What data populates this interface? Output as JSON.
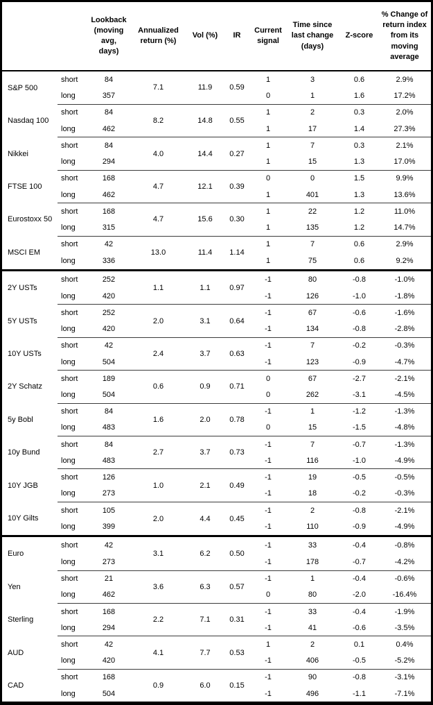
{
  "chart_data": {
    "type": "table",
    "columns": [
      "",
      "",
      "Lookback (moving avg, days)",
      "Annualized return (%)",
      "Vol (%)",
      "IR",
      "Current signal",
      "Time since last change (days)",
      "Z-score",
      "% Change of return index from its moving average"
    ],
    "row_labels": {
      "short": "short",
      "long": "long"
    },
    "sections": [
      [
        {
          "name": "S&P 500",
          "annualized_return": "7.1",
          "vol": "11.9",
          "ir": "0.59",
          "short": {
            "lookback": "84",
            "signal": "1",
            "time_since": "3",
            "z_score": "0.6",
            "pct_change": "2.9%"
          },
          "long": {
            "lookback": "357",
            "signal": "0",
            "time_since": "1",
            "z_score": "1.6",
            "pct_change": "17.2%"
          }
        },
        {
          "name": "Nasdaq 100",
          "annualized_return": "8.2",
          "vol": "14.8",
          "ir": "0.55",
          "short": {
            "lookback": "84",
            "signal": "1",
            "time_since": "2",
            "z_score": "0.3",
            "pct_change": "2.0%"
          },
          "long": {
            "lookback": "462",
            "signal": "1",
            "time_since": "17",
            "z_score": "1.4",
            "pct_change": "27.3%"
          }
        },
        {
          "name": "Nikkei",
          "annualized_return": "4.0",
          "vol": "14.4",
          "ir": "0.27",
          "short": {
            "lookback": "84",
            "signal": "1",
            "time_since": "7",
            "z_score": "0.3",
            "pct_change": "2.1%"
          },
          "long": {
            "lookback": "294",
            "signal": "1",
            "time_since": "15",
            "z_score": "1.3",
            "pct_change": "17.0%"
          }
        },
        {
          "name": "FTSE 100",
          "annualized_return": "4.7",
          "vol": "12.1",
          "ir": "0.39",
          "short": {
            "lookback": "168",
            "signal": "0",
            "time_since": "0",
            "z_score": "1.5",
            "pct_change": "9.9%"
          },
          "long": {
            "lookback": "462",
            "signal": "1",
            "time_since": "401",
            "z_score": "1.3",
            "pct_change": "13.6%"
          }
        },
        {
          "name": "Eurostoxx 50",
          "annualized_return": "4.7",
          "vol": "15.6",
          "ir": "0.30",
          "short": {
            "lookback": "168",
            "signal": "1",
            "time_since": "22",
            "z_score": "1.2",
            "pct_change": "11.0%"
          },
          "long": {
            "lookback": "315",
            "signal": "1",
            "time_since": "135",
            "z_score": "1.2",
            "pct_change": "14.7%"
          }
        },
        {
          "name": "MSCI EM",
          "annualized_return": "13.0",
          "vol": "11.4",
          "ir": "1.14",
          "short": {
            "lookback": "42",
            "signal": "1",
            "time_since": "7",
            "z_score": "0.6",
            "pct_change": "2.9%"
          },
          "long": {
            "lookback": "336",
            "signal": "1",
            "time_since": "75",
            "z_score": "0.6",
            "pct_change": "9.2%"
          }
        }
      ],
      [
        {
          "name": "2Y USTs",
          "annualized_return": "1.1",
          "vol": "1.1",
          "ir": "0.97",
          "short": {
            "lookback": "252",
            "signal": "-1",
            "time_since": "80",
            "z_score": "-0.8",
            "pct_change": "-1.0%"
          },
          "long": {
            "lookback": "420",
            "signal": "-1",
            "time_since": "126",
            "z_score": "-1.0",
            "pct_change": "-1.8%"
          }
        },
        {
          "name": "5Y USTs",
          "annualized_return": "2.0",
          "vol": "3.1",
          "ir": "0.64",
          "short": {
            "lookback": "252",
            "signal": "-1",
            "time_since": "67",
            "z_score": "-0.6",
            "pct_change": "-1.6%"
          },
          "long": {
            "lookback": "420",
            "signal": "-1",
            "time_since": "134",
            "z_score": "-0.8",
            "pct_change": "-2.8%"
          }
        },
        {
          "name": "10Y USTs",
          "annualized_return": "2.4",
          "vol": "3.7",
          "ir": "0.63",
          "short": {
            "lookback": "42",
            "signal": "-1",
            "time_since": "7",
            "z_score": "-0.2",
            "pct_change": "-0.3%"
          },
          "long": {
            "lookback": "504",
            "signal": "-1",
            "time_since": "123",
            "z_score": "-0.9",
            "pct_change": "-4.7%"
          }
        },
        {
          "name": "2Y Schatz",
          "annualized_return": "0.6",
          "vol": "0.9",
          "ir": "0.71",
          "short": {
            "lookback": "189",
            "signal": "0",
            "time_since": "67",
            "z_score": "-2.7",
            "pct_change": "-2.1%"
          },
          "long": {
            "lookback": "504",
            "signal": "0",
            "time_since": "262",
            "z_score": "-3.1",
            "pct_change": "-4.5%"
          }
        },
        {
          "name": "5y Bobl",
          "annualized_return": "1.6",
          "vol": "2.0",
          "ir": "0.78",
          "short": {
            "lookback": "84",
            "signal": "-1",
            "time_since": "1",
            "z_score": "-1.2",
            "pct_change": "-1.3%"
          },
          "long": {
            "lookback": "483",
            "signal": "0",
            "time_since": "15",
            "z_score": "-1.5",
            "pct_change": "-4.8%"
          }
        },
        {
          "name": "10y Bund",
          "annualized_return": "2.7",
          "vol": "3.7",
          "ir": "0.73",
          "short": {
            "lookback": "84",
            "signal": "-1",
            "time_since": "7",
            "z_score": "-0.7",
            "pct_change": "-1.3%"
          },
          "long": {
            "lookback": "483",
            "signal": "-1",
            "time_since": "116",
            "z_score": "-1.0",
            "pct_change": "-4.9%"
          }
        },
        {
          "name": "10Y JGB",
          "annualized_return": "1.0",
          "vol": "2.1",
          "ir": "0.49",
          "short": {
            "lookback": "126",
            "signal": "-1",
            "time_since": "19",
            "z_score": "-0.5",
            "pct_change": "-0.5%"
          },
          "long": {
            "lookback": "273",
            "signal": "-1",
            "time_since": "18",
            "z_score": "-0.2",
            "pct_change": "-0.3%"
          }
        },
        {
          "name": "10Y Gilts",
          "annualized_return": "2.0",
          "vol": "4.4",
          "ir": "0.45",
          "short": {
            "lookback": "105",
            "signal": "-1",
            "time_since": "2",
            "z_score": "-0.8",
            "pct_change": "-2.1%"
          },
          "long": {
            "lookback": "399",
            "signal": "-1",
            "time_since": "110",
            "z_score": "-0.9",
            "pct_change": "-4.9%"
          }
        }
      ],
      [
        {
          "name": "Euro",
          "annualized_return": "3.1",
          "vol": "6.2",
          "ir": "0.50",
          "short": {
            "lookback": "42",
            "signal": "-1",
            "time_since": "33",
            "z_score": "-0.4",
            "pct_change": "-0.8%"
          },
          "long": {
            "lookback": "273",
            "signal": "-1",
            "time_since": "178",
            "z_score": "-0.7",
            "pct_change": "-4.2%"
          }
        },
        {
          "name": "Yen",
          "annualized_return": "3.6",
          "vol": "6.3",
          "ir": "0.57",
          "short": {
            "lookback": "21",
            "signal": "-1",
            "time_since": "1",
            "z_score": "-0.4",
            "pct_change": "-0.6%"
          },
          "long": {
            "lookback": "462",
            "signal": "0",
            "time_since": "80",
            "z_score": "-2.0",
            "pct_change": "-16.4%"
          }
        },
        {
          "name": "Sterling",
          "annualized_return": "2.2",
          "vol": "7.1",
          "ir": "0.31",
          "short": {
            "lookback": "168",
            "signal": "-1",
            "time_since": "33",
            "z_score": "-0.4",
            "pct_change": "-1.9%"
          },
          "long": {
            "lookback": "294",
            "signal": "-1",
            "time_since": "41",
            "z_score": "-0.6",
            "pct_change": "-3.5%"
          }
        },
        {
          "name": "AUD",
          "annualized_return": "4.1",
          "vol": "7.7",
          "ir": "0.53",
          "short": {
            "lookback": "42",
            "signal": "1",
            "time_since": "2",
            "z_score": "0.1",
            "pct_change": "0.4%"
          },
          "long": {
            "lookback": "420",
            "signal": "-1",
            "time_since": "406",
            "z_score": "-0.5",
            "pct_change": "-5.2%"
          }
        },
        {
          "name": "CAD",
          "annualized_return": "0.9",
          "vol": "6.0",
          "ir": "0.15",
          "short": {
            "lookback": "168",
            "signal": "-1",
            "time_since": "90",
            "z_score": "-0.8",
            "pct_change": "-3.1%"
          },
          "long": {
            "lookback": "504",
            "signal": "-1",
            "time_since": "496",
            "z_score": "-1.1",
            "pct_change": "-7.1%"
          }
        }
      ]
    ]
  }
}
